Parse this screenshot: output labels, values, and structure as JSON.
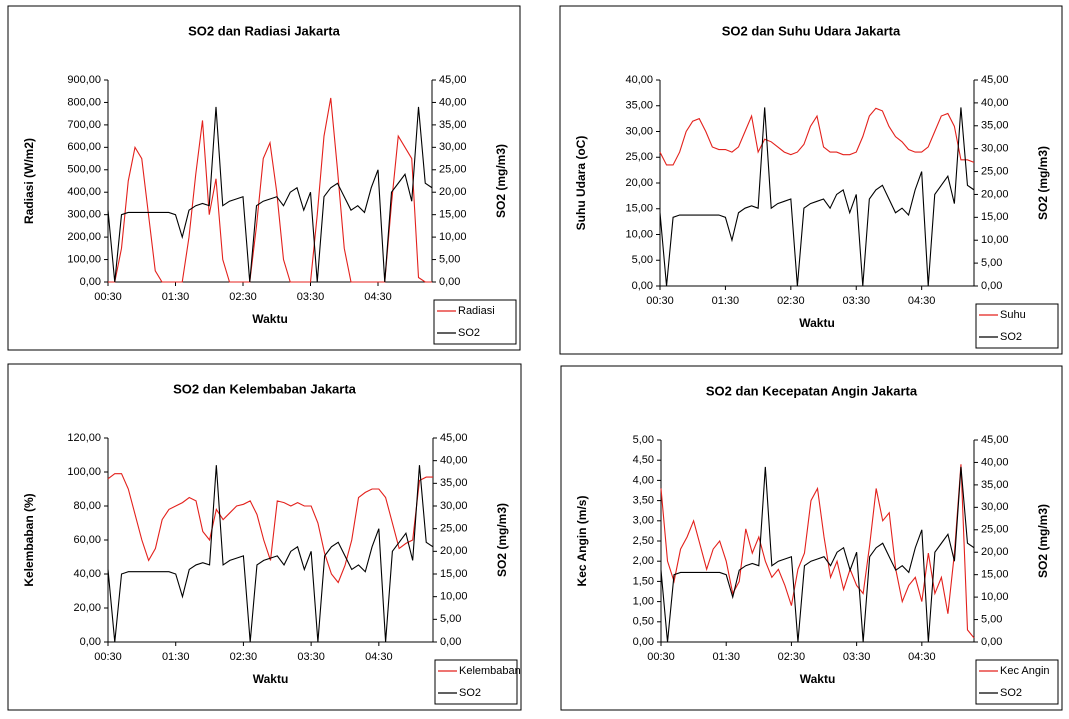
{
  "chart_data": [
    {
      "type": "line",
      "title": "SO2 dan Radiasi Jakarta",
      "x_label": "Waktu",
      "y_label": "Radiasi (W/m2)",
      "y2_label": "SO2 (mg/m3)",
      "categories": [
        "00:30",
        null,
        null,
        null,
        null,
        null,
        null,
        null,
        null,
        null,
        "01:30",
        null,
        null,
        null,
        null,
        null,
        null,
        null,
        null,
        null,
        "02:30",
        null,
        null,
        null,
        null,
        null,
        null,
        null,
        null,
        null,
        "03:30",
        null,
        null,
        null,
        null,
        null,
        null,
        null,
        null,
        null,
        "04:30",
        null,
        null,
        null,
        null,
        null,
        null,
        null,
        null
      ],
      "series": [
        {
          "name": "Radiasi",
          "color": "#e3211c",
          "values": [
            0,
            0,
            150,
            450,
            600,
            550,
            300,
            50,
            0,
            0,
            0,
            0,
            200,
            480,
            720,
            300,
            460,
            100,
            0,
            0,
            0,
            0,
            250,
            550,
            620,
            400,
            100,
            0,
            0,
            0,
            0,
            300,
            650,
            820,
            500,
            150,
            0,
            0,
            0,
            0,
            0,
            0,
            350,
            650,
            600,
            550,
            20,
            0,
            0
          ]
        },
        {
          "name": "SO2",
          "color": "#000000",
          "axis": "y2",
          "values": [
            16,
            0,
            15,
            15.5,
            15.5,
            15.5,
            15.5,
            15.5,
            15.5,
            15.5,
            15,
            10,
            16,
            17,
            17.5,
            17,
            39,
            17,
            18,
            18.5,
            19,
            0,
            17,
            18,
            18.5,
            19,
            17,
            20,
            21,
            16,
            20,
            0,
            19,
            21,
            22,
            19,
            16,
            17,
            15.5,
            21,
            25,
            0,
            20,
            22,
            24,
            18,
            39,
            22,
            21
          ]
        }
      ],
      "ylim": [
        0,
        900
      ],
      "yticks": [
        {
          "value": 0,
          "label": "0,00"
        },
        {
          "value": 100,
          "label": "100,00"
        },
        {
          "value": 200,
          "label": "200,00"
        },
        {
          "value": 300,
          "label": "300,00"
        },
        {
          "value": 400,
          "label": "400,00"
        },
        {
          "value": 500,
          "label": "500,00"
        },
        {
          "value": 600,
          "label": "600,00"
        },
        {
          "value": 700,
          "label": "700,00"
        },
        {
          "value": 800,
          "label": "800,00"
        },
        {
          "value": 900,
          "label": "900,00"
        }
      ],
      "y2lim": [
        0,
        45
      ],
      "y2ticks": [
        {
          "value": 0,
          "label": "0,00"
        },
        {
          "value": 5,
          "label": "5,00"
        },
        {
          "value": 10,
          "label": "10,00"
        },
        {
          "value": 15,
          "label": "15,00"
        },
        {
          "value": 20,
          "label": "20,00"
        },
        {
          "value": 25,
          "label": "25,00"
        },
        {
          "value": 30,
          "label": "30,00"
        },
        {
          "value": 35,
          "label": "35,00"
        },
        {
          "value": 40,
          "label": "40,00"
        },
        {
          "value": 45,
          "label": "45,00"
        }
      ],
      "grid": false,
      "legend": "bottom-right"
    },
    {
      "type": "line",
      "title": "SO2 dan Suhu Udara Jakarta",
      "x_label": "Waktu",
      "y_label": "Suhu Udara (oC)",
      "y2_label": "SO2 (mg/m3)",
      "categories": [
        "00:30",
        null,
        null,
        null,
        null,
        null,
        null,
        null,
        null,
        null,
        "01:30",
        null,
        null,
        null,
        null,
        null,
        null,
        null,
        null,
        null,
        "02:30",
        null,
        null,
        null,
        null,
        null,
        null,
        null,
        null,
        null,
        "03:30",
        null,
        null,
        null,
        null,
        null,
        null,
        null,
        null,
        null,
        "04:30",
        null,
        null,
        null,
        null,
        null,
        null,
        null,
        null
      ],
      "series": [
        {
          "name": "Suhu",
          "color": "#e3211c",
          "values": [
            26,
            23.5,
            23.5,
            26,
            30,
            32,
            32.5,
            30,
            27,
            26.5,
            26.5,
            26,
            27,
            30,
            33,
            26,
            28.5,
            28,
            27,
            26,
            25.5,
            26,
            27.5,
            31,
            33,
            27,
            26,
            26,
            25.5,
            25.5,
            26,
            29,
            33,
            34.5,
            34,
            31,
            29,
            28,
            26.5,
            26,
            26,
            27,
            30,
            33,
            33.5,
            31,
            24.5,
            24.5,
            24
          ]
        },
        {
          "name": "SO2",
          "color": "#000000",
          "axis": "y2",
          "values": [
            16,
            0,
            15,
            15.5,
            15.5,
            15.5,
            15.5,
            15.5,
            15.5,
            15.5,
            15,
            10,
            16,
            17,
            17.5,
            17,
            39,
            17,
            18,
            18.5,
            19,
            0,
            17,
            18,
            18.5,
            19,
            17,
            20,
            21,
            16,
            20,
            0,
            19,
            21,
            22,
            19,
            16,
            17,
            15.5,
            21,
            25,
            0,
            20,
            22,
            24,
            18,
            39,
            22,
            21
          ]
        }
      ],
      "ylim": [
        0,
        40
      ],
      "yticks": [
        {
          "value": 0,
          "label": "0,00"
        },
        {
          "value": 5,
          "label": "5,00"
        },
        {
          "value": 10,
          "label": "10,00"
        },
        {
          "value": 15,
          "label": "15,00"
        },
        {
          "value": 20,
          "label": "20,00"
        },
        {
          "value": 25,
          "label": "25,00"
        },
        {
          "value": 30,
          "label": "30,00"
        },
        {
          "value": 35,
          "label": "35,00"
        },
        {
          "value": 40,
          "label": "40,00"
        }
      ],
      "y2lim": [
        0,
        45
      ],
      "y2ticks": [
        {
          "value": 0,
          "label": "0,00"
        },
        {
          "value": 5,
          "label": "5,00"
        },
        {
          "value": 10,
          "label": "10,00"
        },
        {
          "value": 15,
          "label": "15,00"
        },
        {
          "value": 20,
          "label": "20,00"
        },
        {
          "value": 25,
          "label": "25,00"
        },
        {
          "value": 30,
          "label": "30,00"
        },
        {
          "value": 35,
          "label": "35,00"
        },
        {
          "value": 40,
          "label": "40,00"
        },
        {
          "value": 45,
          "label": "45,00"
        }
      ],
      "grid": false,
      "legend": "bottom-right"
    },
    {
      "type": "line",
      "title": "SO2 dan Kelembaban Jakarta",
      "x_label": "Waktu",
      "y_label": "Kelembaban (%)",
      "y2_label": "SO2  (mg/m3)",
      "categories": [
        "00:30",
        null,
        null,
        null,
        null,
        null,
        null,
        null,
        null,
        null,
        "01:30",
        null,
        null,
        null,
        null,
        null,
        null,
        null,
        null,
        null,
        "02:30",
        null,
        null,
        null,
        null,
        null,
        null,
        null,
        null,
        null,
        "03:30",
        null,
        null,
        null,
        null,
        null,
        null,
        null,
        null,
        null,
        "04:30",
        null,
        null,
        null,
        null,
        null,
        null,
        null,
        null
      ],
      "series": [
        {
          "name": "Kelembaban",
          "color": "#e3211c",
          "values": [
            96,
            99,
            99,
            90,
            75,
            60,
            48,
            55,
            72,
            78,
            80,
            82,
            85,
            83,
            65,
            60,
            78,
            72,
            76,
            80,
            81,
            83,
            75,
            60,
            48,
            83,
            82,
            80,
            82,
            80,
            80,
            70,
            52,
            40,
            35,
            45,
            60,
            85,
            88,
            90,
            90,
            85,
            70,
            55,
            58,
            60,
            95,
            97,
            97
          ]
        },
        {
          "name": "SO2",
          "color": "#000000",
          "axis": "y2",
          "values": [
            16,
            0,
            15,
            15.5,
            15.5,
            15.5,
            15.5,
            15.5,
            15.5,
            15.5,
            15,
            10,
            16,
            17,
            17.5,
            17,
            39,
            17,
            18,
            18.5,
            19,
            0,
            17,
            18,
            18.5,
            19,
            17,
            20,
            21,
            16,
            20,
            0,
            19,
            21,
            22,
            19,
            16,
            17,
            15.5,
            21,
            25,
            0,
            20,
            22,
            24,
            18,
            39,
            22,
            21
          ]
        }
      ],
      "ylim": [
        0,
        120
      ],
      "yticks": [
        {
          "value": 0,
          "label": "0,00"
        },
        {
          "value": 20,
          "label": "20,00"
        },
        {
          "value": 40,
          "label": "40,00"
        },
        {
          "value": 60,
          "label": "60,00"
        },
        {
          "value": 80,
          "label": "80,00"
        },
        {
          "value": 100,
          "label": "100,00"
        },
        {
          "value": 120,
          "label": "120,00"
        }
      ],
      "y2lim": [
        0,
        45
      ],
      "y2ticks": [
        {
          "value": 0,
          "label": "0,00"
        },
        {
          "value": 5,
          "label": "5,00"
        },
        {
          "value": 10,
          "label": "10,00"
        },
        {
          "value": 15,
          "label": "15,00"
        },
        {
          "value": 20,
          "label": "20,00"
        },
        {
          "value": 25,
          "label": "25,00"
        },
        {
          "value": 30,
          "label": "30,00"
        },
        {
          "value": 35,
          "label": "35,00"
        },
        {
          "value": 40,
          "label": "40,00"
        },
        {
          "value": 45,
          "label": "45,00"
        }
      ],
      "grid": false,
      "legend": "bottom-right"
    },
    {
      "type": "line",
      "title": "SO2 dan Kecepatan Angin Jakarta",
      "x_label": "Waktu",
      "y_label": "Kec Angin (m/s)",
      "y2_label": "SO2 (mg/m3)",
      "categories": [
        "00:30",
        null,
        null,
        null,
        null,
        null,
        null,
        null,
        null,
        null,
        "01:30",
        null,
        null,
        null,
        null,
        null,
        null,
        null,
        null,
        null,
        "02:30",
        null,
        null,
        null,
        null,
        null,
        null,
        null,
        null,
        null,
        "03:30",
        null,
        null,
        null,
        null,
        null,
        null,
        null,
        null,
        null,
        "04:30",
        null,
        null,
        null,
        null,
        null,
        null,
        null,
        null
      ],
      "series": [
        {
          "name": "Kec Angin",
          "color": "#e3211c",
          "values": [
            3.8,
            2.0,
            1.5,
            2.3,
            2.6,
            3.0,
            2.4,
            1.8,
            2.3,
            2.5,
            2.0,
            1.2,
            1.5,
            2.8,
            2.2,
            2.6,
            2.0,
            1.6,
            1.8,
            1.4,
            0.9,
            1.8,
            2.2,
            3.5,
            3.8,
            2.6,
            1.6,
            2.0,
            1.3,
            1.8,
            1.4,
            1.2,
            2.4,
            3.8,
            3.0,
            3.2,
            1.8,
            1.0,
            1.4,
            1.6,
            1.0,
            2.2,
            1.2,
            1.6,
            0.7,
            2.2,
            4.4,
            0.3,
            0.1
          ]
        },
        {
          "name": "SO2",
          "color": "#000000",
          "axis": "y2",
          "values": [
            16,
            0,
            15,
            15.5,
            15.5,
            15.5,
            15.5,
            15.5,
            15.5,
            15.5,
            15,
            10,
            16,
            17,
            17.5,
            17,
            39,
            17,
            18,
            18.5,
            19,
            0,
            17,
            18,
            18.5,
            19,
            17,
            20,
            21,
            16,
            20,
            0,
            19,
            21,
            22,
            19,
            16,
            17,
            15.5,
            21,
            25,
            0,
            20,
            22,
            24,
            18,
            39,
            22,
            21
          ]
        }
      ],
      "ylim": [
        0,
        5
      ],
      "yticks": [
        {
          "value": 0,
          "label": "0,00"
        },
        {
          "value": 0.5,
          "label": "0,50"
        },
        {
          "value": 1,
          "label": "1,00"
        },
        {
          "value": 1.5,
          "label": "1,50"
        },
        {
          "value": 2,
          "label": "2,00"
        },
        {
          "value": 2.5,
          "label": "2,50"
        },
        {
          "value": 3,
          "label": "3,00"
        },
        {
          "value": 3.5,
          "label": "3,50"
        },
        {
          "value": 4,
          "label": "4,00"
        },
        {
          "value": 4.5,
          "label": "4,50"
        },
        {
          "value": 5,
          "label": "5,00"
        }
      ],
      "y2lim": [
        0,
        45
      ],
      "y2ticks": [
        {
          "value": 0,
          "label": "0,00"
        },
        {
          "value": 5,
          "label": "5,00"
        },
        {
          "value": 10,
          "label": "10,00"
        },
        {
          "value": 15,
          "label": "15,00"
        },
        {
          "value": 20,
          "label": "20,00"
        },
        {
          "value": 25,
          "label": "25,00"
        },
        {
          "value": 30,
          "label": "30,00"
        },
        {
          "value": 35,
          "label": "35,00"
        },
        {
          "value": 40,
          "label": "40,00"
        },
        {
          "value": 45,
          "label": "45,00"
        }
      ],
      "grid": false,
      "legend": "bottom-right"
    }
  ]
}
